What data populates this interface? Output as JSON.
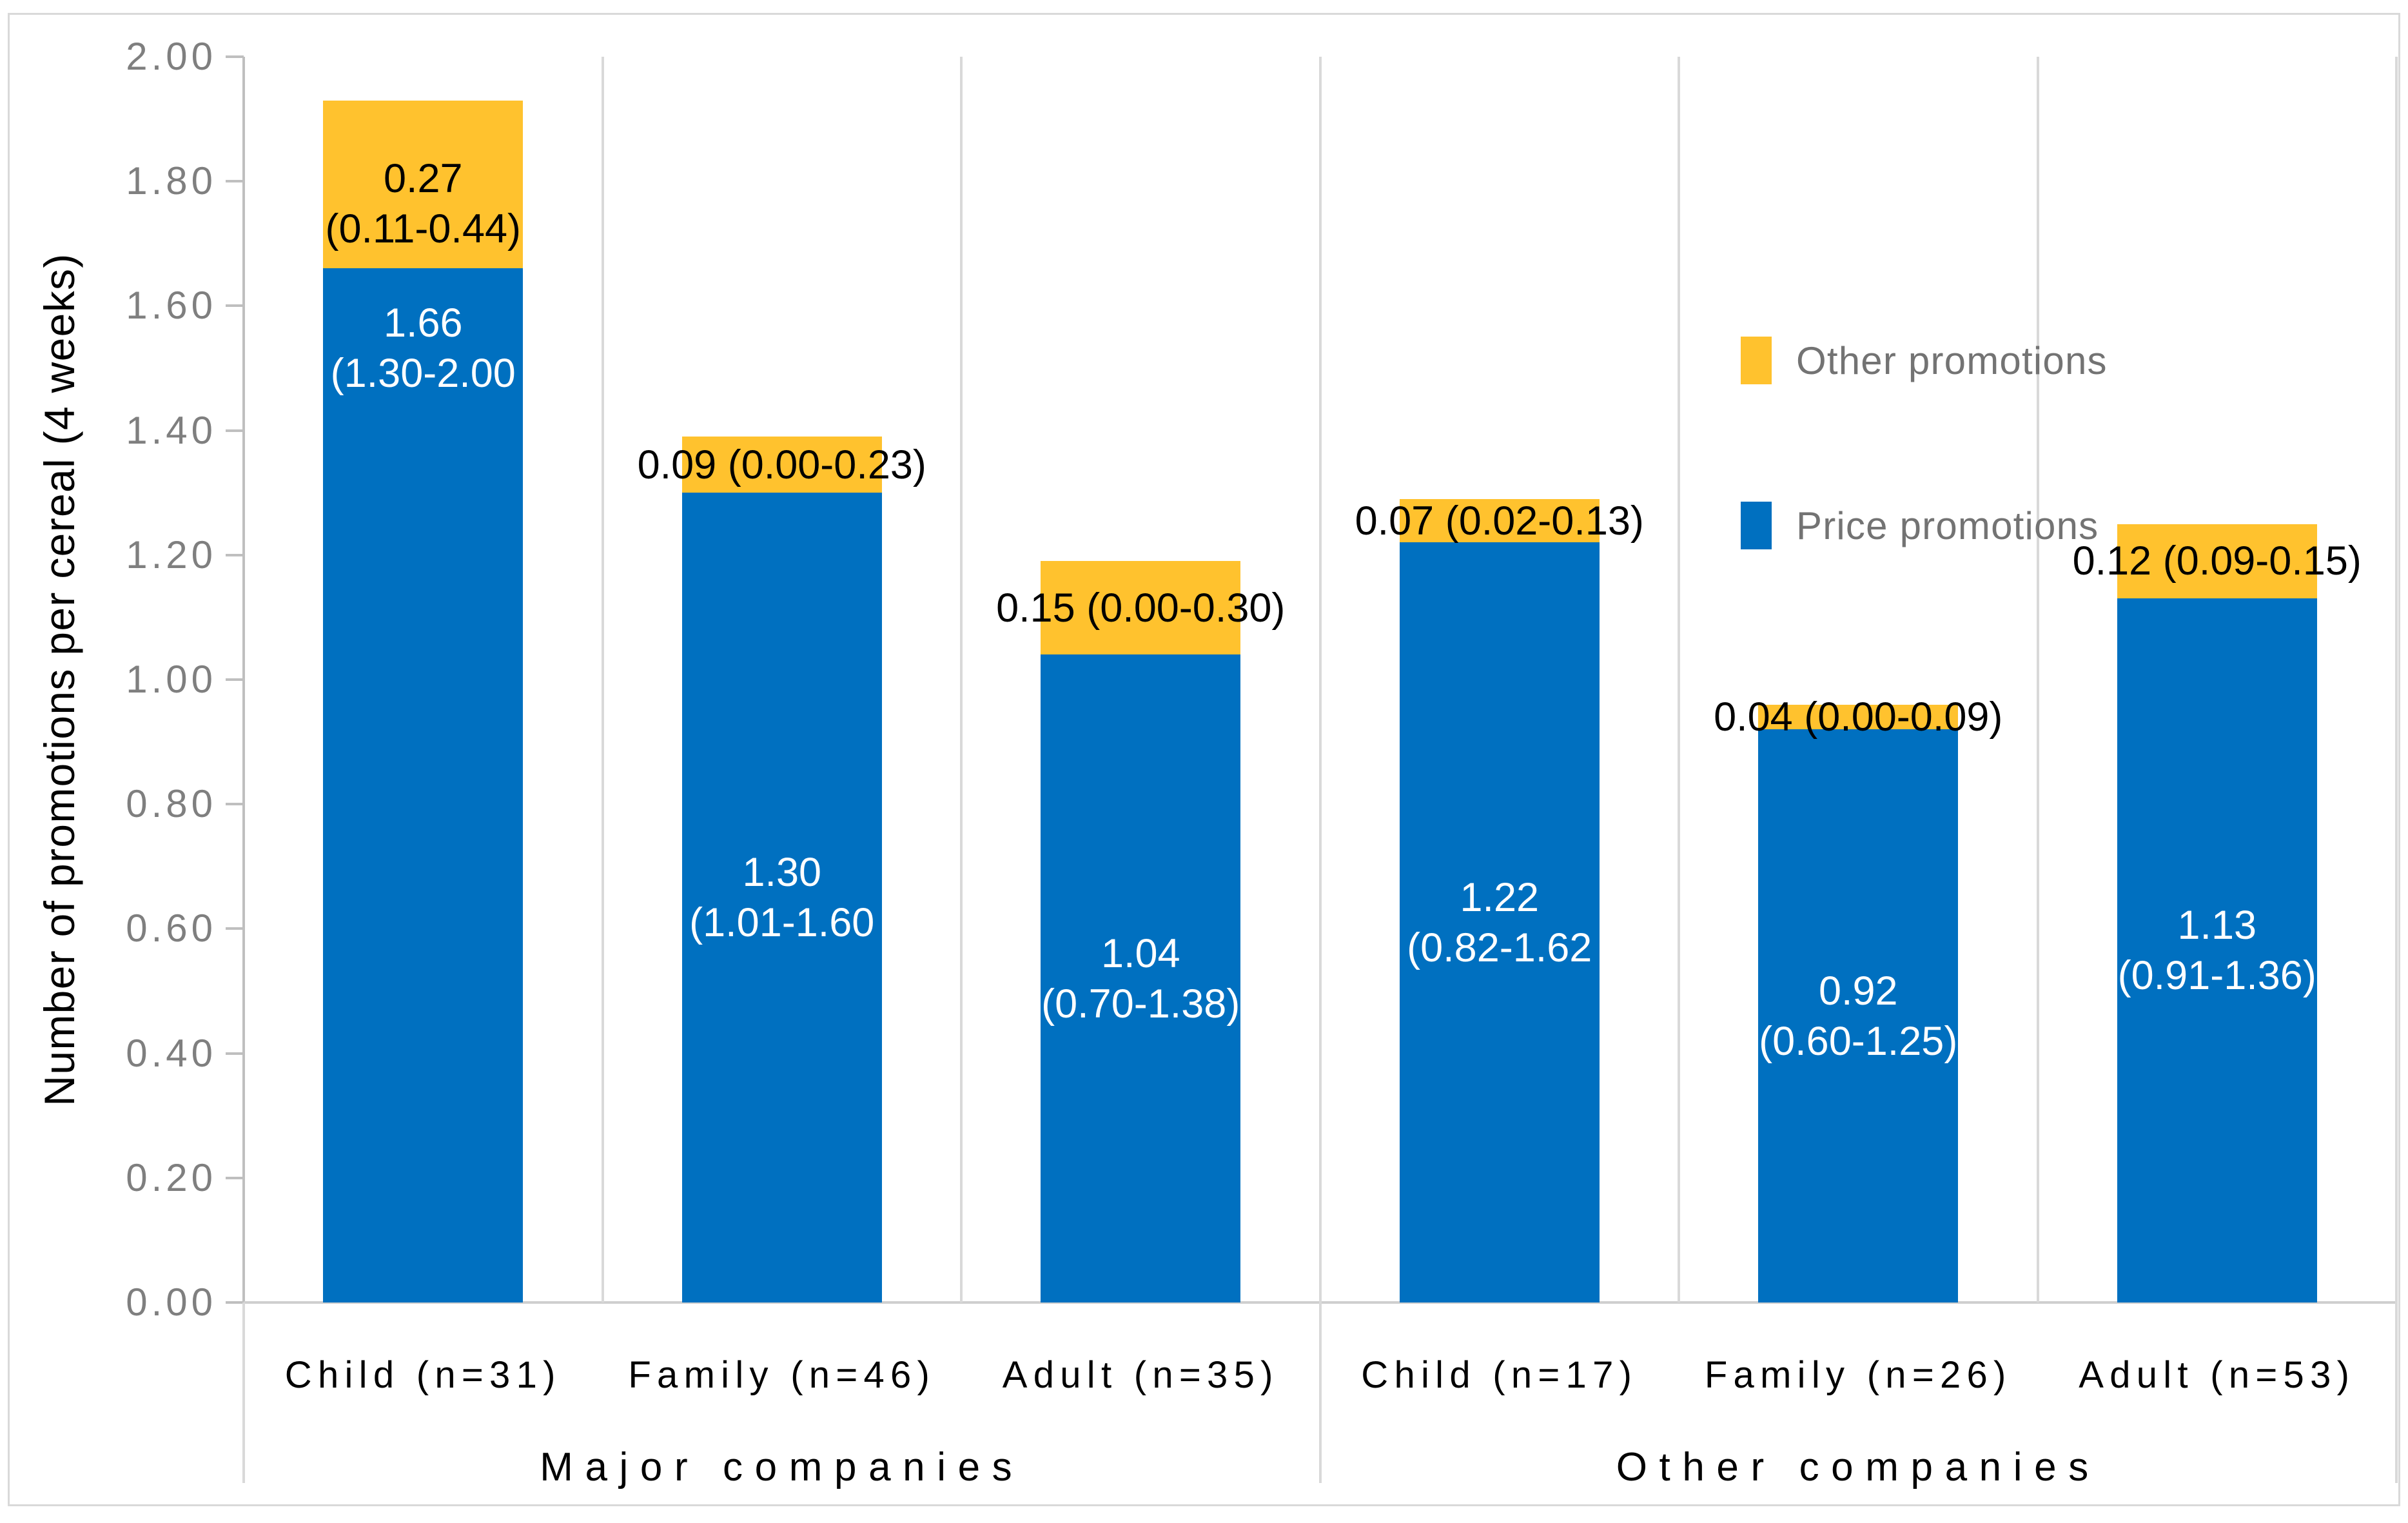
{
  "chart_data": {
    "type": "bar",
    "stacked": true,
    "title": "",
    "ylabel": "Number of promotions per cereal (4 weeks)",
    "ylim": [
      0,
      2.0
    ],
    "ytick_step": 0.2,
    "ytick_labels": [
      "0.00",
      "0.20",
      "0.40",
      "0.60",
      "0.80",
      "1.00",
      "1.20",
      "1.40",
      "1.60",
      "1.80",
      "2.00"
    ],
    "grid": "off",
    "groups": [
      {
        "label": "Major companies",
        "categories": [
          "Child (n=31)",
          "Family (n=46)",
          "Adult (n=35)"
        ]
      },
      {
        "label": "Other companies",
        "categories": [
          "Child (n=17)",
          "Family (n=26)",
          "Adult (n=53)"
        ]
      }
    ],
    "categories": [
      "Child (n=31)",
      "Family (n=46)",
      "Adult (n=35)",
      "Child (n=17)",
      "Family (n=26)",
      "Adult (n=53)"
    ],
    "series": [
      {
        "name": "Price promotions",
        "color": "#0070C0",
        "label_color": "#FFFFFF",
        "values": [
          1.66,
          1.3,
          1.04,
          1.22,
          0.92,
          1.13
        ],
        "labels": [
          [
            "1.66",
            "(1.30-2.00"
          ],
          [
            "1.30",
            "(1.01-1.60"
          ],
          [
            "1.04",
            "(0.70-1.38)"
          ],
          [
            "1.22",
            "(0.82-1.62"
          ],
          [
            "0.92",
            "(0.60-1.25)"
          ],
          [
            "1.13",
            "(0.91-1.36)"
          ]
        ]
      },
      {
        "name": "Other promotions",
        "color": "#FFC22E",
        "label_color": "#000000",
        "values": [
          0.27,
          0.09,
          0.15,
          0.07,
          0.04,
          0.12
        ],
        "labels": [
          [
            "0.27",
            "(0.11-0.44)"
          ],
          [
            "0.09 (0.00-0.23)"
          ],
          [
            "0.15 (0.00-0.30)"
          ],
          [
            "0.07 (0.02-0.13)"
          ],
          [
            "0.04 (0.00-0.09)"
          ],
          [
            "0.12 (0.09-0.15)"
          ]
        ]
      }
    ],
    "legend": {
      "position": "upper-right",
      "entries": [
        "Other promotions",
        "Price promotions"
      ]
    },
    "axis_colors": {
      "tick_label": "#7F7F7F",
      "separator": "#D9D9D9",
      "axis_line": "#BFBFBF"
    }
  }
}
